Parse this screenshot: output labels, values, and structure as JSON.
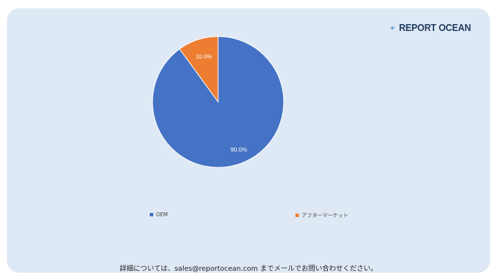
{
  "brand": {
    "logo_text": "REPORT OCEAN",
    "icon": "bar-chart-globe-icon",
    "color": "#1f3a5f"
  },
  "chart_data": {
    "type": "pie",
    "title": "",
    "slices": [
      {
        "label": "OEM",
        "value": 90.0,
        "display": "90.0%",
        "color": "#4472c4"
      },
      {
        "label": "アフターマーケット",
        "value": 10.0,
        "display": "10.0%",
        "color": "#ed7d31"
      }
    ],
    "legend_position": "bottom"
  },
  "footer": {
    "text": "詳細については、sales@reportocean.com までメールでお問い合わせください。"
  },
  "colors": {
    "background": "#dfe9f5",
    "oem": "#4472c4",
    "aftermarket": "#ed7d31"
  }
}
